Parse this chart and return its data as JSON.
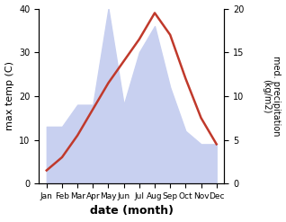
{
  "months": [
    "Jan",
    "Feb",
    "Mar",
    "Apr",
    "May",
    "Jun",
    "Jul",
    "Aug",
    "Sep",
    "Oct",
    "Nov",
    "Dec"
  ],
  "x": [
    0,
    1,
    2,
    3,
    4,
    5,
    6,
    7,
    8,
    9,
    10,
    11
  ],
  "temperature": [
    3,
    6,
    11,
    17,
    23,
    28,
    33,
    39,
    34,
    24,
    15,
    9
  ],
  "precipitation": [
    6.5,
    6.5,
    9,
    9,
    20,
    9,
    15,
    18,
    11,
    6,
    4.5,
    4.5
  ],
  "temp_color": "#c0392b",
  "precip_fill_color": "#c8d0f0",
  "xlabel": "date (month)",
  "ylabel_left": "max temp (C)",
  "ylabel_right": "med. precipitation\n(kg/m2)",
  "ylim_left": [
    0,
    40
  ],
  "ylim_right": [
    0,
    20
  ],
  "yticks_left": [
    0,
    10,
    20,
    30,
    40
  ],
  "yticks_right": [
    0,
    5,
    10,
    15,
    20
  ],
  "bg_color": "#ffffff",
  "line_width": 1.8
}
